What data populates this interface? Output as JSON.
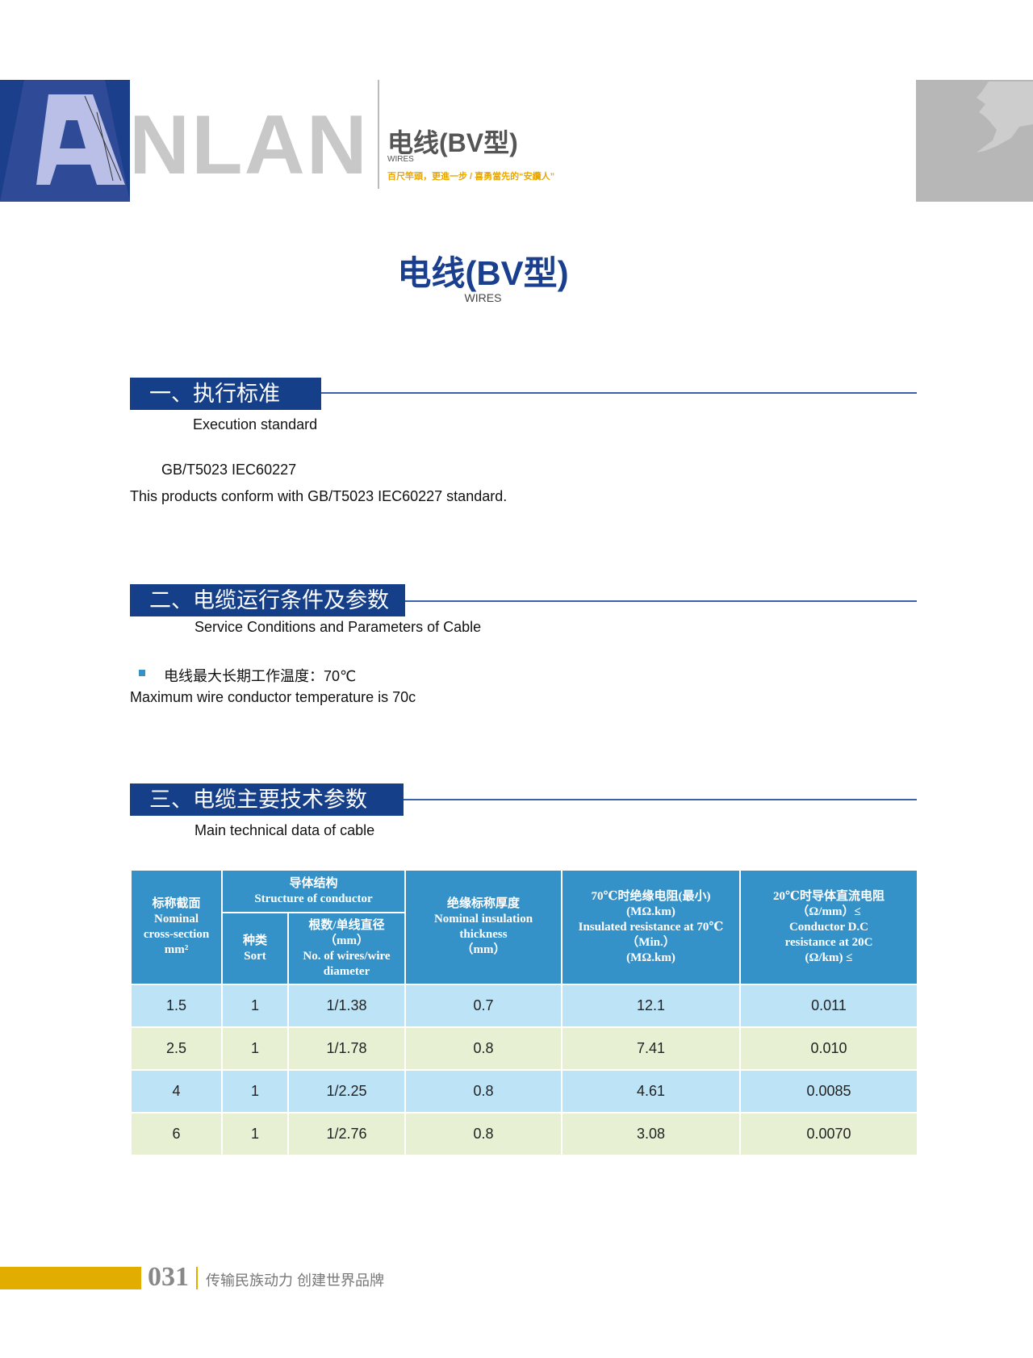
{
  "header": {
    "logo_text": "ANLAN",
    "title": "电线(BV型)",
    "subtitle": "WIRES",
    "slogan": "百尺竿頭，更進一步 / 喜勇當先的“安纜人”"
  },
  "main": {
    "title": "电线(BV型)",
    "subtitle": "WIRES"
  },
  "section1": {
    "heading": "一、执行标准",
    "subheading": "Execution standard",
    "standard": "GB/T5023  IEC60227",
    "statement": "This products conform with GB/T5023  IEC60227 standard."
  },
  "section2": {
    "heading": "二、电缆运行条件及参数",
    "subheading": "Service Conditions and Parameters of Cable",
    "bullet_cn": "电线最大长期工作温度：70℃",
    "bullet_en": "Maximum wire conductor temperature is 70c"
  },
  "section3": {
    "heading": "三、电缆主要技术参数",
    "subheading": "Main technical data of cable"
  },
  "table": {
    "headers": {
      "cross_section": [
        "标称截面",
        "Nominal",
        "cross-section",
        "mm²"
      ],
      "structure": [
        "导体结构",
        "Structure of conductor"
      ],
      "sort": [
        "种类",
        "Sort"
      ],
      "wires": [
        "根数/单线直径",
        "（mm）",
        "No. of wires/wire",
        "diameter"
      ],
      "insulation": [
        "绝缘标称厚度",
        "Nominal insulation",
        "thickness",
        "（mm）"
      ],
      "insulated_resistance": [
        "70℃时绝缘电阻(最小)",
        "(MΩ.km)",
        "Insulated resistance at 70℃",
        "（Min.）",
        "(MΩ.km)"
      ],
      "dc_resistance": [
        "20℃时导体直流电阻",
        "（Ω/mm）≤",
        "Conductor D.C",
        "resistance at 20C",
        "(Ω/km) ≤"
      ]
    },
    "rows": [
      [
        "1.5",
        "1",
        "1/1.38",
        "0.7",
        "12.1",
        "0.011"
      ],
      [
        "2.5",
        "1",
        "1/1.78",
        "0.8",
        "7.41",
        "0.010"
      ],
      [
        "4",
        "1",
        "1/2.25",
        "0.8",
        "4.61",
        "0.0085"
      ],
      [
        "6",
        "1",
        "1/2.76",
        "0.8",
        "3.08",
        "0.0070"
      ]
    ]
  },
  "footer": {
    "page_number": "031",
    "slogan": "传输民族动力  创建世界品牌"
  },
  "colors": {
    "navy": "#163f8a",
    "table_header": "#3592c8",
    "row_blue": "#bde3f7",
    "row_green": "#e8f0d4",
    "accent_gold": "#e3ad00"
  }
}
